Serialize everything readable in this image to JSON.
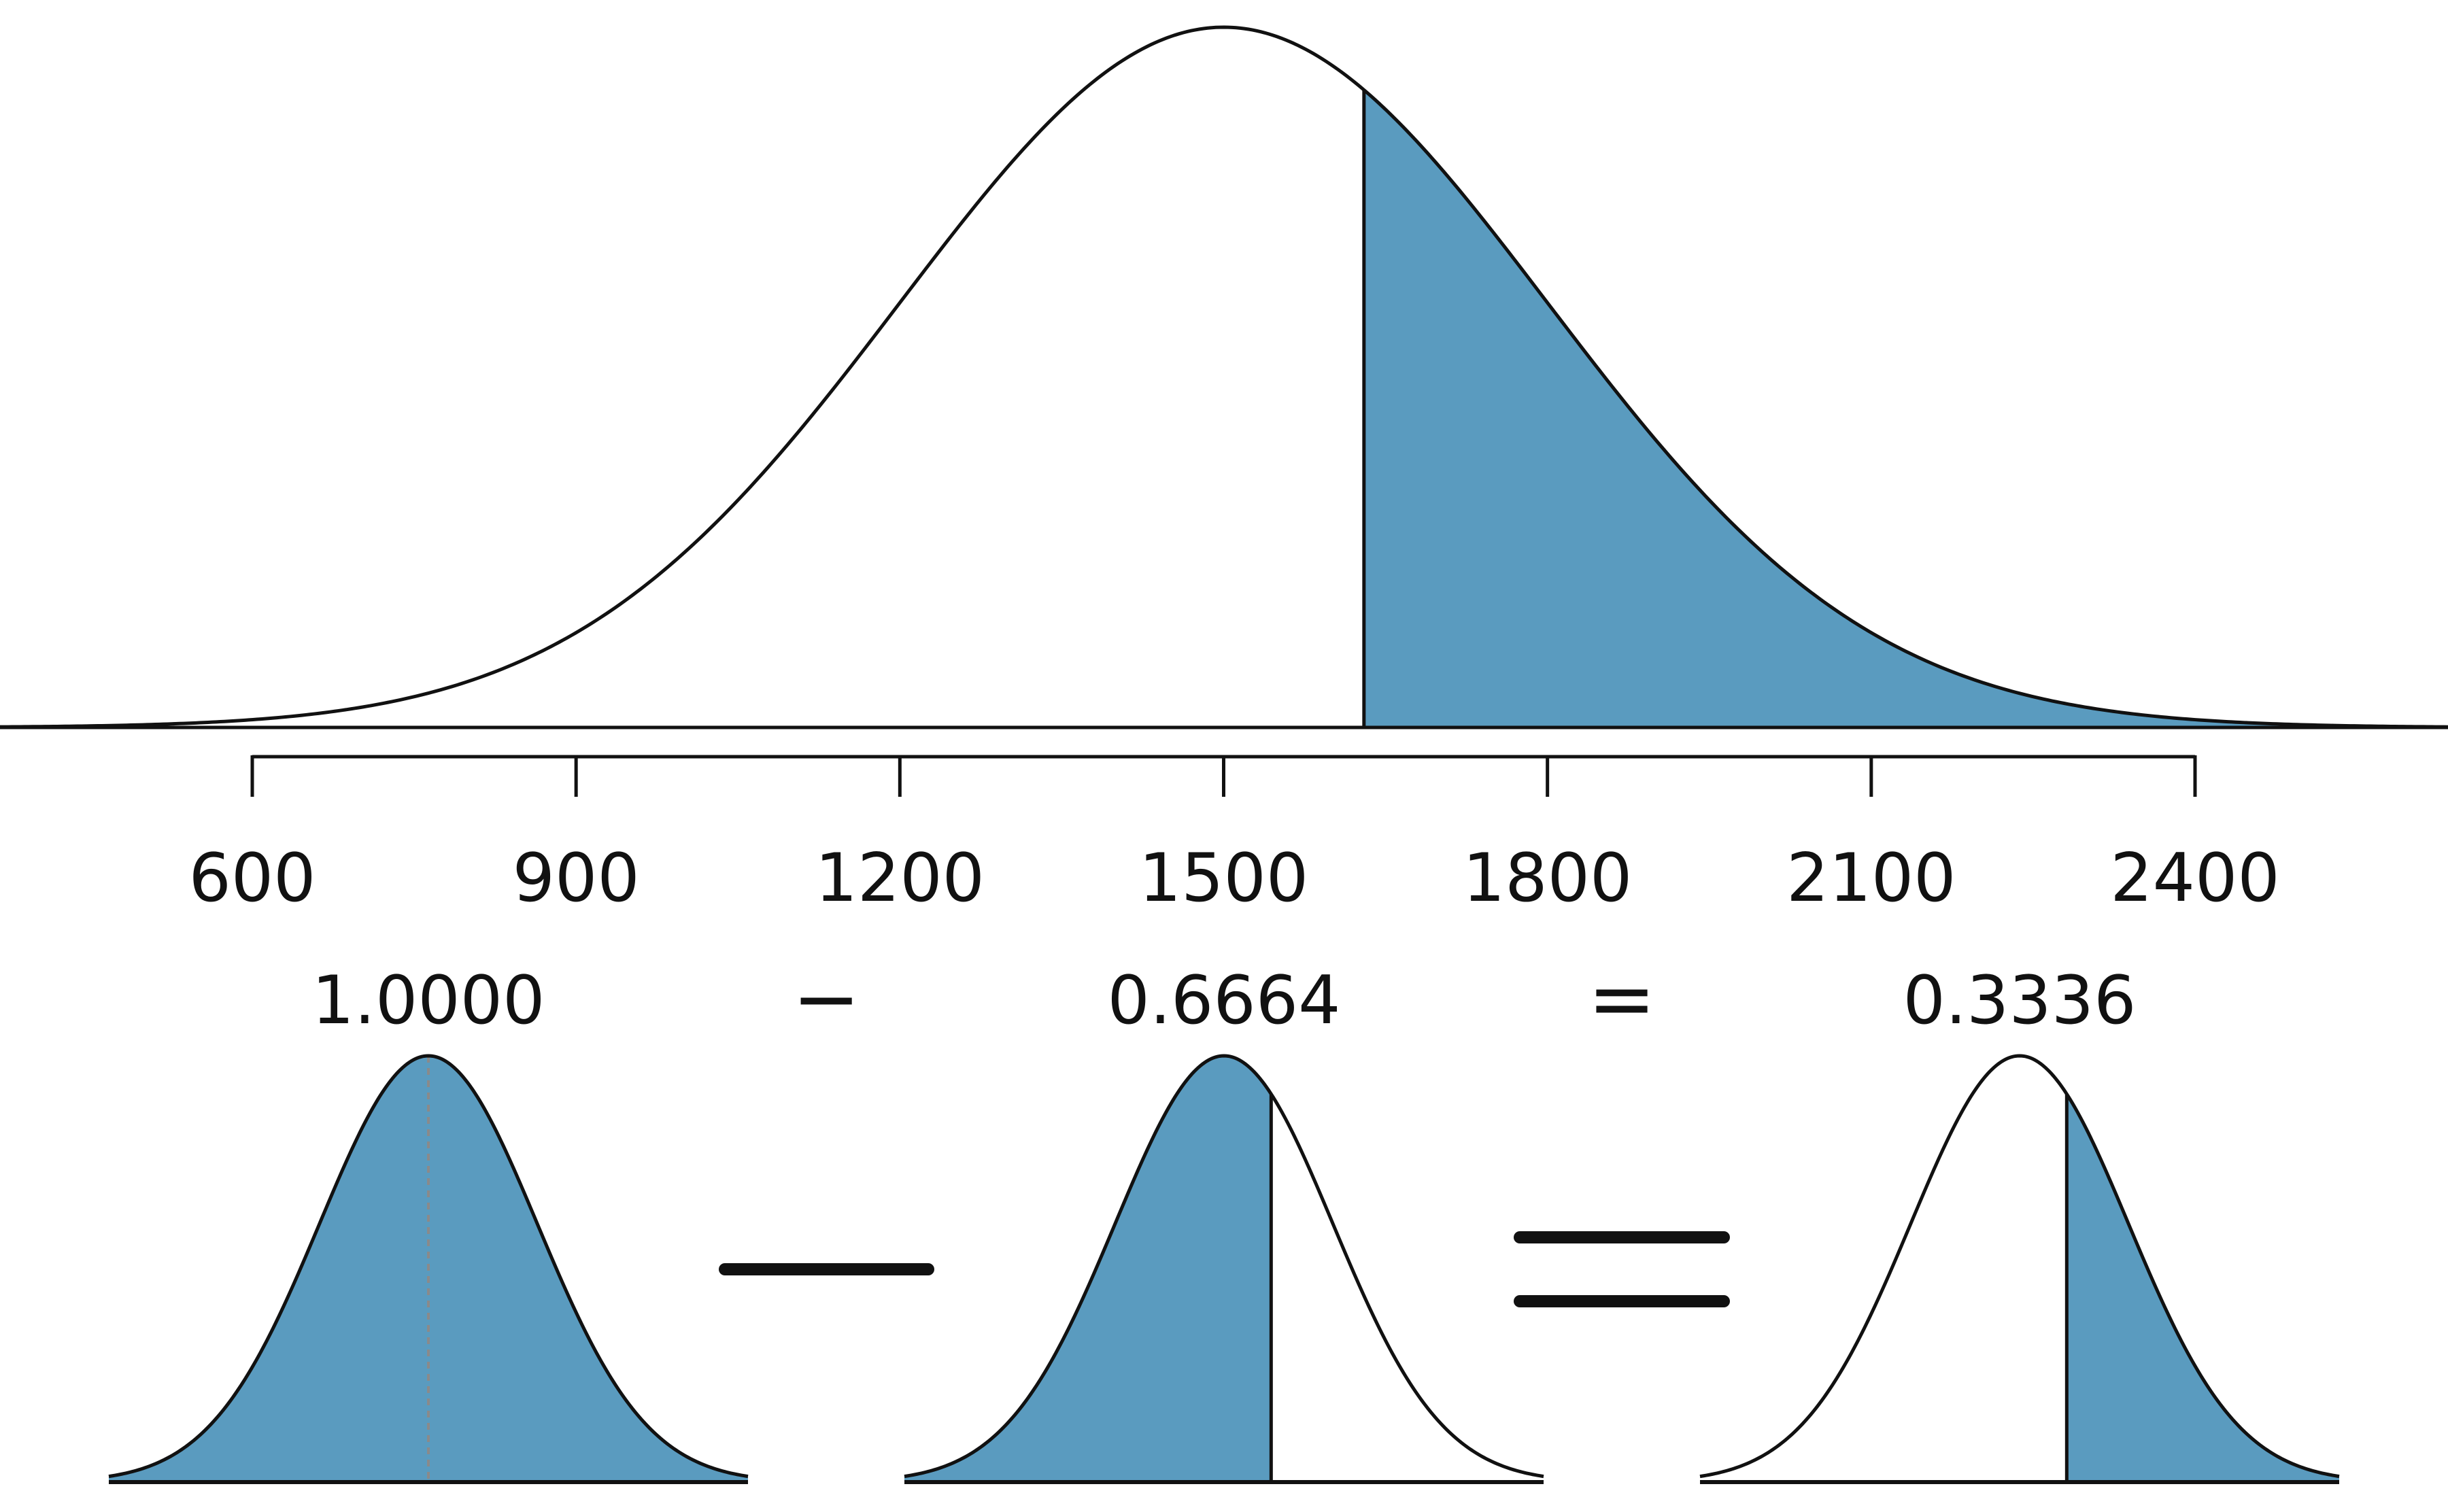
{
  "distribution": {
    "mean": 1500,
    "sd": 300,
    "cutoff": 1630,
    "axis_ticks": [
      600,
      900,
      1200,
      1500,
      1800,
      2100,
      2400
    ],
    "axis_tick_labels": [
      "600",
      "900",
      "1200",
      "1500",
      "1800",
      "2100",
      "2400"
    ]
  },
  "equation": {
    "total": {
      "label": "1.0000",
      "value": 1.0,
      "shaded": "all"
    },
    "minus": {
      "label": "−"
    },
    "left_area": {
      "label": "0.6664",
      "value": 0.6664,
      "shaded": "left"
    },
    "equals": {
      "label": "="
    },
    "result": {
      "label": "0.3336",
      "value": 0.3336,
      "shaded": "right"
    }
  },
  "colors": {
    "fill": "#5a9bbf",
    "curve": "#111111",
    "dashed_center": "#8a8a8a",
    "background": "#ffffff"
  }
}
